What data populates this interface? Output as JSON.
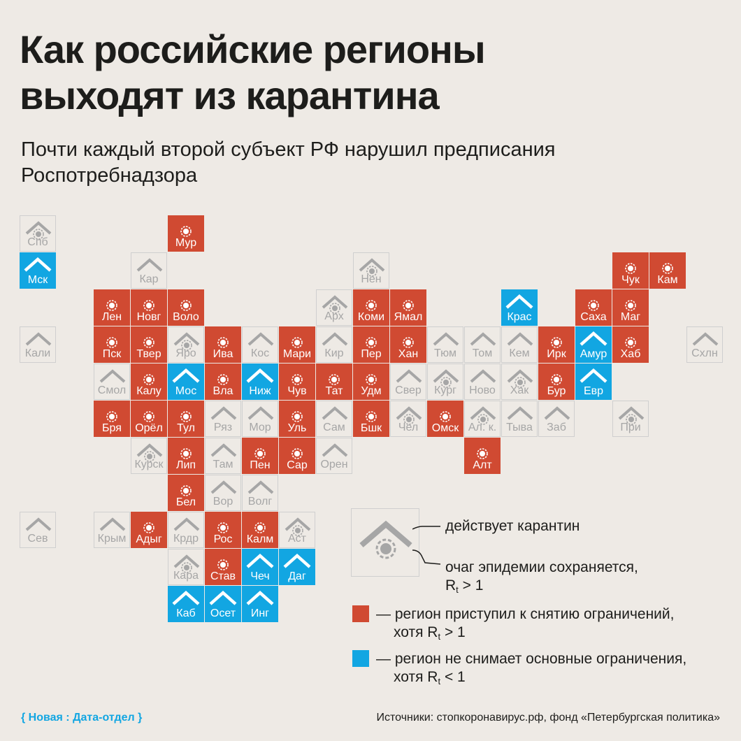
{
  "title_line1": "Как российские регионы",
  "title_line2": "выходят из карантина",
  "subtitle_line1": "Почти каждый второй субъект РФ нарушил предписания",
  "subtitle_line2": "Роспотребнадзора",
  "colors": {
    "restrictions_lifted": "#d04a32",
    "restrictions_kept": "#12a6e2",
    "quarantine": "#eeeae5"
  },
  "regions": [
    {
      "label": "Спб",
      "status": "quarantine",
      "outbreak": true,
      "col": 0,
      "row": 0
    },
    {
      "label": "Мур",
      "status": "lifted",
      "outbreak": true,
      "col": 4,
      "row": 0
    },
    {
      "label": "Мск",
      "status": "kept",
      "outbreak": false,
      "col": 0,
      "row": 1
    },
    {
      "label": "Кар",
      "status": "quarantine",
      "outbreak": false,
      "col": 3,
      "row": 1
    },
    {
      "label": "Нен",
      "status": "quarantine",
      "outbreak": true,
      "col": 9,
      "row": 1
    },
    {
      "label": "Чук",
      "status": "lifted",
      "outbreak": true,
      "col": 16,
      "row": 1
    },
    {
      "label": "Кам",
      "status": "lifted",
      "outbreak": true,
      "col": 17,
      "row": 1
    },
    {
      "label": "Лен",
      "status": "lifted",
      "outbreak": true,
      "col": 2,
      "row": 2
    },
    {
      "label": "Новг",
      "status": "lifted",
      "outbreak": true,
      "col": 3,
      "row": 2
    },
    {
      "label": "Воло",
      "status": "lifted",
      "outbreak": true,
      "col": 4,
      "row": 2
    },
    {
      "label": "Арх",
      "status": "quarantine",
      "outbreak": true,
      "col": 8,
      "row": 2
    },
    {
      "label": "Коми",
      "status": "lifted",
      "outbreak": true,
      "col": 9,
      "row": 2
    },
    {
      "label": "Ямал",
      "status": "lifted",
      "outbreak": true,
      "col": 10,
      "row": 2
    },
    {
      "label": "Крас",
      "status": "kept",
      "outbreak": false,
      "col": 13,
      "row": 2
    },
    {
      "label": "Саха",
      "status": "lifted",
      "outbreak": true,
      "col": 15,
      "row": 2
    },
    {
      "label": "Маг",
      "status": "lifted",
      "outbreak": true,
      "col": 16,
      "row": 2
    },
    {
      "label": "Кали",
      "status": "quarantine",
      "outbreak": false,
      "col": 0,
      "row": 3
    },
    {
      "label": "Пск",
      "status": "lifted",
      "outbreak": true,
      "col": 2,
      "row": 3
    },
    {
      "label": "Твер",
      "status": "lifted",
      "outbreak": true,
      "col": 3,
      "row": 3
    },
    {
      "label": "Яро",
      "status": "quarantine",
      "outbreak": true,
      "col": 4,
      "row": 3
    },
    {
      "label": "Ива",
      "status": "lifted",
      "outbreak": true,
      "col": 5,
      "row": 3
    },
    {
      "label": "Кос",
      "status": "quarantine",
      "outbreak": false,
      "col": 6,
      "row": 3
    },
    {
      "label": "Мари",
      "status": "lifted",
      "outbreak": true,
      "col": 7,
      "row": 3
    },
    {
      "label": "Кир",
      "status": "quarantine",
      "outbreak": false,
      "col": 8,
      "row": 3
    },
    {
      "label": "Пер",
      "status": "lifted",
      "outbreak": true,
      "col": 9,
      "row": 3
    },
    {
      "label": "Хан",
      "status": "lifted",
      "outbreak": true,
      "col": 10,
      "row": 3
    },
    {
      "label": "Тюм",
      "status": "quarantine",
      "outbreak": false,
      "col": 11,
      "row": 3
    },
    {
      "label": "Том",
      "status": "quarantine",
      "outbreak": false,
      "col": 12,
      "row": 3
    },
    {
      "label": "Кем",
      "status": "quarantine",
      "outbreak": false,
      "col": 13,
      "row": 3
    },
    {
      "label": "Ирк",
      "status": "lifted",
      "outbreak": true,
      "col": 14,
      "row": 3
    },
    {
      "label": "Амур",
      "status": "kept",
      "outbreak": false,
      "col": 15,
      "row": 3
    },
    {
      "label": "Хаб",
      "status": "lifted",
      "outbreak": true,
      "col": 16,
      "row": 3
    },
    {
      "label": "Схлн",
      "status": "quarantine",
      "outbreak": false,
      "col": 18,
      "row": 3
    },
    {
      "label": "Смол",
      "status": "quarantine",
      "outbreak": false,
      "col": 2,
      "row": 4
    },
    {
      "label": "Калу",
      "status": "lifted",
      "outbreak": true,
      "col": 3,
      "row": 4
    },
    {
      "label": "Мос",
      "status": "kept",
      "outbreak": false,
      "col": 4,
      "row": 4
    },
    {
      "label": "Вла",
      "status": "lifted",
      "outbreak": true,
      "col": 5,
      "row": 4
    },
    {
      "label": "Ниж",
      "status": "kept",
      "outbreak": false,
      "col": 6,
      "row": 4
    },
    {
      "label": "Чув",
      "status": "lifted",
      "outbreak": true,
      "col": 7,
      "row": 4
    },
    {
      "label": "Тат",
      "status": "lifted",
      "outbreak": true,
      "col": 8,
      "row": 4
    },
    {
      "label": "Удм",
      "status": "lifted",
      "outbreak": true,
      "col": 9,
      "row": 4
    },
    {
      "label": "Свер",
      "status": "quarantine",
      "outbreak": false,
      "col": 10,
      "row": 4
    },
    {
      "label": "Кург",
      "status": "quarantine",
      "outbreak": true,
      "col": 11,
      "row": 4
    },
    {
      "label": "Ново",
      "status": "quarantine",
      "outbreak": false,
      "col": 12,
      "row": 4
    },
    {
      "label": "Хак",
      "status": "quarantine",
      "outbreak": true,
      "col": 13,
      "row": 4
    },
    {
      "label": "Бур",
      "status": "lifted",
      "outbreak": true,
      "col": 14,
      "row": 4
    },
    {
      "label": "Евр",
      "status": "kept",
      "outbreak": false,
      "col": 15,
      "row": 4
    },
    {
      "label": "Бря",
      "status": "lifted",
      "outbreak": true,
      "col": 2,
      "row": 5
    },
    {
      "label": "Орёл",
      "status": "lifted",
      "outbreak": true,
      "col": 3,
      "row": 5
    },
    {
      "label": "Тул",
      "status": "lifted",
      "outbreak": true,
      "col": 4,
      "row": 5
    },
    {
      "label": "Ряз",
      "status": "quarantine",
      "outbreak": false,
      "col": 5,
      "row": 5
    },
    {
      "label": "Мор",
      "status": "quarantine",
      "outbreak": false,
      "col": 6,
      "row": 5
    },
    {
      "label": "Уль",
      "status": "lifted",
      "outbreak": true,
      "col": 7,
      "row": 5
    },
    {
      "label": "Сам",
      "status": "quarantine",
      "outbreak": false,
      "col": 8,
      "row": 5
    },
    {
      "label": "Бшк",
      "status": "lifted",
      "outbreak": true,
      "col": 9,
      "row": 5
    },
    {
      "label": "Чел",
      "status": "quarantine",
      "outbreak": true,
      "col": 10,
      "row": 5
    },
    {
      "label": "Омск",
      "status": "lifted",
      "outbreak": true,
      "col": 11,
      "row": 5
    },
    {
      "label": "Ал. к.",
      "status": "quarantine",
      "outbreak": true,
      "col": 12,
      "row": 5
    },
    {
      "label": "Тыва",
      "status": "quarantine",
      "outbreak": false,
      "col": 13,
      "row": 5
    },
    {
      "label": "Заб",
      "status": "quarantine",
      "outbreak": false,
      "col": 14,
      "row": 5
    },
    {
      "label": "При",
      "status": "quarantine",
      "outbreak": true,
      "col": 16,
      "row": 5
    },
    {
      "label": "Курск",
      "status": "quarantine",
      "outbreak": true,
      "col": 3,
      "row": 6
    },
    {
      "label": "Лип",
      "status": "lifted",
      "outbreak": true,
      "col": 4,
      "row": 6
    },
    {
      "label": "Там",
      "status": "quarantine",
      "outbreak": false,
      "col": 5,
      "row": 6
    },
    {
      "label": "Пен",
      "status": "lifted",
      "outbreak": true,
      "col": 6,
      "row": 6
    },
    {
      "label": "Сар",
      "status": "lifted",
      "outbreak": true,
      "col": 7,
      "row": 6
    },
    {
      "label": "Орен",
      "status": "quarantine",
      "outbreak": false,
      "col": 8,
      "row": 6
    },
    {
      "label": "Алт",
      "status": "lifted",
      "outbreak": true,
      "col": 12,
      "row": 6
    },
    {
      "label": "Бел",
      "status": "lifted",
      "outbreak": true,
      "col": 4,
      "row": 7
    },
    {
      "label": "Вор",
      "status": "quarantine",
      "outbreak": false,
      "col": 5,
      "row": 7
    },
    {
      "label": "Волг",
      "status": "quarantine",
      "outbreak": false,
      "col": 6,
      "row": 7
    },
    {
      "label": "Сев",
      "status": "quarantine",
      "outbreak": false,
      "col": 0,
      "row": 8
    },
    {
      "label": "Крым",
      "status": "quarantine",
      "outbreak": false,
      "col": 2,
      "row": 8
    },
    {
      "label": "Адыг",
      "status": "lifted",
      "outbreak": true,
      "col": 3,
      "row": 8
    },
    {
      "label": "Крдр",
      "status": "quarantine",
      "outbreak": false,
      "col": 4,
      "row": 8
    },
    {
      "label": "Рос",
      "status": "lifted",
      "outbreak": true,
      "col": 5,
      "row": 8
    },
    {
      "label": "Калм",
      "status": "lifted",
      "outbreak": true,
      "col": 6,
      "row": 8
    },
    {
      "label": "Аст",
      "status": "quarantine",
      "outbreak": true,
      "col": 7,
      "row": 8
    },
    {
      "label": "Кара",
      "status": "quarantine",
      "outbreak": true,
      "col": 4,
      "row": 9
    },
    {
      "label": "Став",
      "status": "lifted",
      "outbreak": true,
      "col": 5,
      "row": 9
    },
    {
      "label": "Чеч",
      "status": "kept",
      "outbreak": false,
      "col": 6,
      "row": 9
    },
    {
      "label": "Даг",
      "status": "kept",
      "outbreak": false,
      "col": 7,
      "row": 9
    },
    {
      "label": "Каб",
      "status": "kept",
      "outbreak": false,
      "col": 4,
      "row": 10
    },
    {
      "label": "Осет",
      "status": "kept",
      "outbreak": false,
      "col": 5,
      "row": 10
    },
    {
      "label": "Инг",
      "status": "kept",
      "outbreak": false,
      "col": 6,
      "row": 10
    }
  ],
  "legend": {
    "quarantine_label": "действует карантин",
    "outbreak_label": "очаг эпидемии сохраняется,",
    "outbreak_rt_prefix": "R",
    "outbreak_rt_sub": "t",
    "outbreak_rt_suffix": " > 1",
    "lifted_label": "— регион приступил к снятию ограничений,",
    "lifted_line2_prefix": "хотя R",
    "lifted_line2_sub": "t",
    "lifted_line2_suffix": " > 1",
    "kept_label": "— регион не снимает основные ограничения,",
    "kept_line2_prefix": "хотя R",
    "kept_line2_sub": "t",
    "kept_line2_suffix": " < 1"
  },
  "footer": {
    "brand": "{ Новая : Дата-отдел }",
    "sources": "Источники: стопкоронавирус.рф, фонд «Петербургская политика»"
  }
}
